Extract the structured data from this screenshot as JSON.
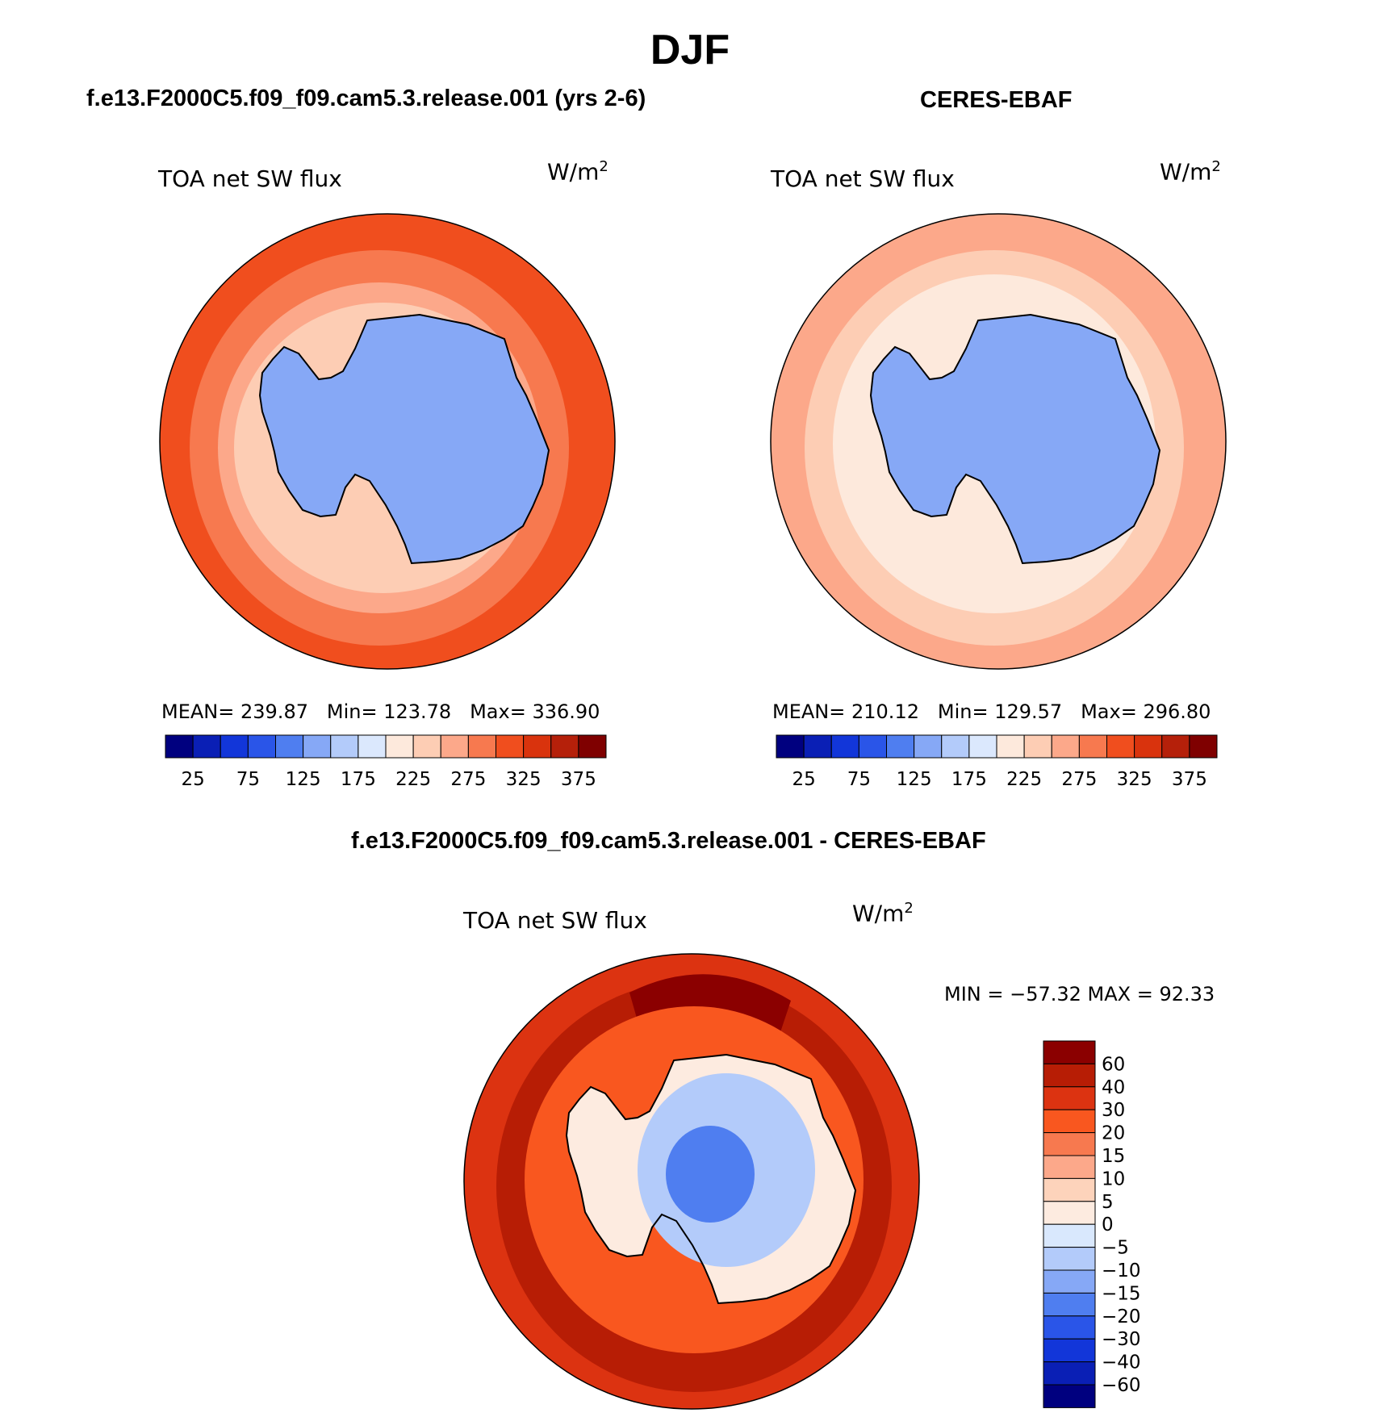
{
  "title": "DJF",
  "panels": {
    "model": {
      "heading": "f.e13.F2000C5.f09_f09.cam5.3.release.001 (yrs 2-6)",
      "variable": "TOA net SW flux",
      "units_base": "W/m",
      "units_exp": "2",
      "stats": {
        "mean_label": "MEAN=",
        "mean": "239.87",
        "min_label": "Min=",
        "min": "123.78",
        "max_label": "Max=",
        "max": "336.90"
      }
    },
    "obs": {
      "heading": "CERES-EBAF",
      "variable": "TOA net SW flux",
      "units_base": "W/m",
      "units_exp": "2",
      "stats": {
        "mean_label": "MEAN=",
        "mean": "210.12",
        "min_label": "Min=",
        "min": "129.57",
        "max_label": "Max=",
        "max": "296.80"
      }
    },
    "diff": {
      "heading": "f.e13.F2000C5.f09_f09.cam5.3.release.001 - CERES-EBAF",
      "variable": "TOA net SW flux",
      "units_base": "W/m",
      "units_exp": "2",
      "minmax_text": "MIN = −57.32 MAX =  92.33"
    }
  },
  "colorbar_abs": {
    "tick_labels": [
      "25",
      "75",
      "125",
      "175",
      "225",
      "275",
      "325",
      "375"
    ],
    "colors": [
      "#00007f",
      "#0a1fb5",
      "#1236d9",
      "#2a55e8",
      "#4f7ef0",
      "#86a8f6",
      "#b3cbfa",
      "#dbe8fd",
      "#fde9dc",
      "#fdcdb4",
      "#fca88a",
      "#f7794f",
      "#f04e1e",
      "#d9330d",
      "#b5200a",
      "#7f0000"
    ]
  },
  "colorbar_diff": {
    "tick_labels": [
      "60",
      "40",
      "30",
      "20",
      "15",
      "10",
      "5",
      "0",
      "−5",
      "−10",
      "−15",
      "−20",
      "−30",
      "−40",
      "−60"
    ],
    "colors": [
      "#8b0000",
      "#b71d05",
      "#dc3311",
      "#f9571f",
      "#f7794f",
      "#fca88a",
      "#fdd3bb",
      "#fdebe0",
      "#d9e8fd",
      "#b3cbfa",
      "#86a8f6",
      "#4f7ef0",
      "#2a55e8",
      "#1236d9",
      "#0a1fb5",
      "#00007f"
    ]
  },
  "map_colors": {
    "model_ocean_outer": "#f04e1e",
    "model_ocean_mid": "#f7794f",
    "model_ocean_inner": "#fca88a",
    "model_sea_ice": "#fdcdb4",
    "model_land": "#86a8f6",
    "obs_ocean_outer": "#fca88a",
    "obs_ocean_mid": "#fdcdb4",
    "obs_ocean_inner": "#fde9dc",
    "obs_land": "#86a8f6",
    "diff_ocean_outer": "#dc3311",
    "diff_ocean_mid": "#b71d05",
    "diff_ocean_max": "#8b0000",
    "diff_coast": "#f9571f",
    "diff_land": "#fdebe0",
    "diff_interior": "#b3cbfa",
    "diff_center": "#4f7ef0",
    "coastline": "#000000"
  }
}
